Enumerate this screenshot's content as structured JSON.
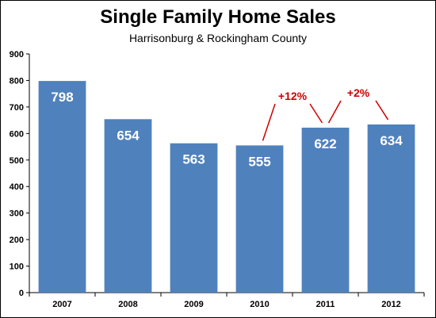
{
  "chart_data": {
    "type": "bar",
    "title": "Single Family Home Sales",
    "subtitle": "Harrisonburg  & Rockingham  County",
    "categories": [
      "2007",
      "2008",
      "2009",
      "2010",
      "2011",
      "2012"
    ],
    "values": [
      798,
      654,
      563,
      555,
      622,
      634
    ],
    "data_labels": [
      "798",
      "654",
      "563",
      "555",
      "622",
      "634"
    ],
    "ylim": [
      0,
      900
    ],
    "yticks": [
      0,
      100,
      200,
      300,
      400,
      500,
      600,
      700,
      800,
      900
    ],
    "ytick_labels": [
      "0",
      "100",
      "200",
      "300",
      "400",
      "500",
      "600",
      "700",
      "800",
      "900"
    ],
    "xlabel": "",
    "ylabel": "",
    "grid": false,
    "legend": "none",
    "annotations": [
      {
        "text": "+12%",
        "from": "2010",
        "to": "2011"
      },
      {
        "text": "+2%",
        "from": "2011",
        "to": "2012"
      }
    ],
    "colors": {
      "bar": "#4f81bd",
      "data_label": "#ffffff",
      "annotation": "#cc0000",
      "axis": "#000000"
    }
  }
}
